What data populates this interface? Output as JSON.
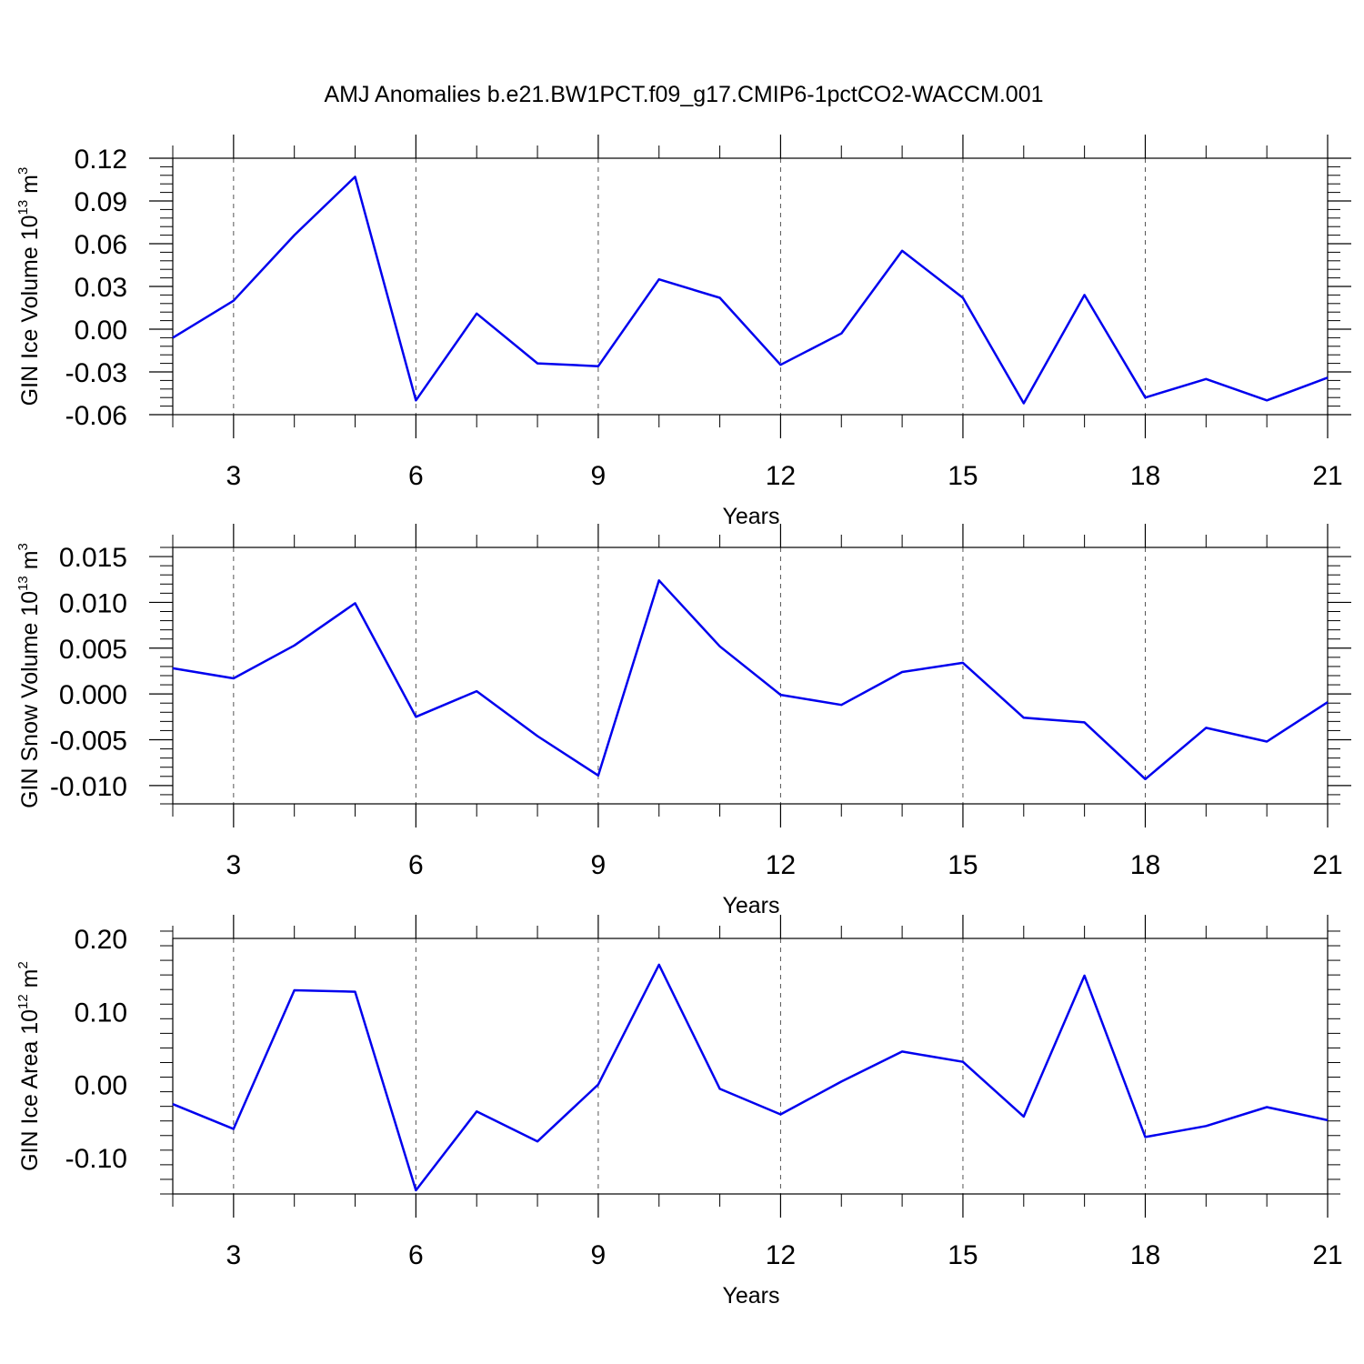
{
  "title": "AMJ Anomalies b.e21.BW1PCT.f09_g17.CMIP6-1pctCO2-WACCM.001",
  "colors": {
    "series": "#0000ee",
    "grid": "#555555",
    "axis": "#000000"
  },
  "chart_data": [
    {
      "type": "line",
      "ylabel": {
        "main": "GIN Ice Volume 10",
        "exponent": "13",
        "unit": " m",
        "unit_exponent": "3"
      },
      "xlabel": "Years",
      "xlim": [
        2,
        21
      ],
      "ylim": [
        -0.06,
        0.12
      ],
      "xticks": [
        3,
        6,
        9,
        12,
        15,
        18,
        21
      ],
      "xtick_labels": [
        "3",
        "6",
        "9",
        "12",
        "15",
        "18",
        "21"
      ],
      "yticks": [
        -0.06,
        -0.03,
        0.0,
        0.03,
        0.06,
        0.09,
        0.12
      ],
      "ytick_labels": [
        "-0.06",
        "-0.03",
        "0.00",
        "0.03",
        "0.06",
        "0.09",
        "0.12"
      ],
      "grid": "vertical dashed at major x ticks",
      "x": [
        2,
        3,
        4,
        5,
        6,
        7,
        8,
        9,
        10,
        11,
        12,
        13,
        14,
        15,
        16,
        17,
        18,
        19,
        20,
        21
      ],
      "values": [
        -0.006,
        0.02,
        0.066,
        0.107,
        -0.05,
        0.011,
        -0.024,
        -0.026,
        0.035,
        0.022,
        -0.025,
        -0.003,
        0.055,
        0.022,
        -0.052,
        0.024,
        -0.048,
        -0.035,
        -0.05,
        -0.034
      ]
    },
    {
      "type": "line",
      "ylabel": {
        "main": "GIN Snow Volume 10",
        "exponent": "13",
        "unit": " m",
        "unit_exponent": "3"
      },
      "xlabel": "Years",
      "xlim": [
        2,
        21
      ],
      "ylim": [
        -0.012,
        0.016
      ],
      "xticks": [
        3,
        6,
        9,
        12,
        15,
        18,
        21
      ],
      "xtick_labels": [
        "3",
        "6",
        "9",
        "12",
        "15",
        "18",
        "21"
      ],
      "yticks": [
        -0.01,
        -0.005,
        0.0,
        0.005,
        0.01,
        0.015
      ],
      "ytick_labels": [
        "-0.010",
        "-0.005",
        "0.000",
        "0.005",
        "0.010",
        "0.015"
      ],
      "grid": "vertical dashed at major x ticks",
      "x": [
        2,
        3,
        4,
        5,
        6,
        7,
        8,
        9,
        10,
        11,
        12,
        13,
        14,
        15,
        16,
        17,
        18,
        19,
        20,
        21
      ],
      "values": [
        0.0028,
        0.0017,
        0.0053,
        0.0099,
        -0.0025,
        0.0003,
        -0.0046,
        -0.0089,
        0.0124,
        0.0052,
        -0.0001,
        -0.0012,
        0.0024,
        0.0034,
        -0.0026,
        -0.0031,
        -0.0093,
        -0.0037,
        -0.0052,
        -0.0009
      ]
    },
    {
      "type": "line",
      "ylabel": {
        "main": "GIN Ice Area 10",
        "exponent": "12",
        "unit": " m",
        "unit_exponent": "2"
      },
      "xlabel": "Years",
      "xlim": [
        2,
        21
      ],
      "ylim": [
        -0.15,
        0.2
      ],
      "xticks": [
        3,
        6,
        9,
        12,
        15,
        18,
        21
      ],
      "xtick_labels": [
        "3",
        "6",
        "9",
        "12",
        "15",
        "18",
        "21"
      ],
      "yticks": [
        -0.1,
        0.0,
        0.1,
        0.2
      ],
      "ytick_labels": [
        "-0.10",
        "0.00",
        "0.10",
        "0.20"
      ],
      "grid": "vertical dashed at major x ticks",
      "x": [
        2,
        3,
        4,
        5,
        6,
        7,
        8,
        9,
        10,
        11,
        12,
        13,
        14,
        15,
        16,
        17,
        18,
        19,
        20,
        21
      ],
      "values": [
        -0.027,
        -0.061,
        0.129,
        0.127,
        -0.145,
        -0.037,
        -0.078,
        0.0,
        0.164,
        -0.006,
        -0.041,
        0.004,
        0.045,
        0.031,
        -0.044,
        0.149,
        -0.072,
        -0.057,
        -0.031,
        -0.049
      ]
    }
  ]
}
